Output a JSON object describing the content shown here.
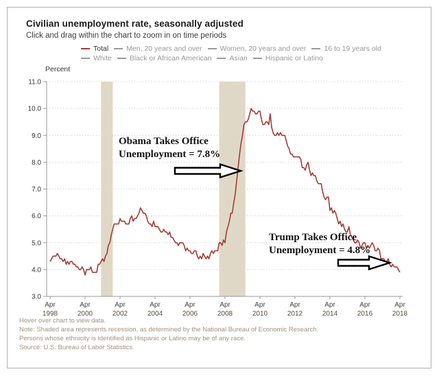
{
  "header": {
    "title": "Civilian unemployment rate, seasonally adjusted",
    "subtitle": "Click and drag within the chart to zoom in on time periods"
  },
  "legend": {
    "items": [
      {
        "label": "Total",
        "color": "#a33c32",
        "text_color": "#333333",
        "active": true
      },
      {
        "label": "Men, 20 years and over",
        "color": "#999999",
        "text_color": "#999999",
        "active": false
      },
      {
        "label": "Women, 20 years and over",
        "color": "#999999",
        "text_color": "#999999",
        "active": false
      },
      {
        "label": "16 to 19 years old",
        "color": "#999999",
        "text_color": "#999999",
        "active": false
      },
      {
        "label": "White",
        "color": "#999999",
        "text_color": "#999999",
        "active": false
      },
      {
        "label": "Black or African American",
        "color": "#999999",
        "text_color": "#999999",
        "active": false
      },
      {
        "label": "Asian",
        "color": "#999999",
        "text_color": "#999999",
        "active": false
      },
      {
        "label": "Hispanic or Latino",
        "color": "#999999",
        "text_color": "#999999",
        "active": false
      }
    ]
  },
  "chart_data": {
    "type": "line",
    "title": "Civilian unemployment rate, seasonally adjusted",
    "ylabel": "Percent",
    "xlabel": "",
    "ylim": [
      3.0,
      11.0
    ],
    "yticks": [
      "11.0",
      "10.0",
      "9.0",
      "8.0",
      "7.0",
      "6.0",
      "5.0",
      "4.0",
      "3.0"
    ],
    "grid": "dotted-horizontal",
    "legend_position": "top-center",
    "x_interval": "monthly",
    "x_start": "Apr 1998",
    "x_end": "Apr 2018",
    "xticks": [
      {
        "month": "Apr",
        "year": "1998"
      },
      {
        "month": "Apr",
        "year": "2000"
      },
      {
        "month": "Apr",
        "year": "2002"
      },
      {
        "month": "Apr",
        "year": "2004"
      },
      {
        "month": "Apr",
        "year": "2006"
      },
      {
        "month": "Apr",
        "year": "2008"
      },
      {
        "month": "Apr",
        "year": "2010"
      },
      {
        "month": "Apr",
        "year": "2012"
      },
      {
        "month": "Apr",
        "year": "2014"
      },
      {
        "month": "Apr",
        "year": "2016"
      },
      {
        "month": "Apr",
        "year": "2018"
      }
    ],
    "xtick_month_step": 24,
    "band_color": "#e0d8c7",
    "recessions": [
      {
        "label": "2001 recession",
        "start_month_index": 35,
        "end_month_index": 43
      },
      {
        "label": "2007-2009 recession",
        "start_month_index": 116,
        "end_month_index": 134
      }
    ],
    "series": [
      {
        "name": "Total",
        "color": "#a33c32",
        "values": [
          4.3,
          4.4,
          4.5,
          4.5,
          4.5,
          4.6,
          4.5,
          4.4,
          4.4,
          4.3,
          4.4,
          4.2,
          4.3,
          4.2,
          4.3,
          4.3,
          4.2,
          4.2,
          4.1,
          4.1,
          4.0,
          4.0,
          4.1,
          4.0,
          3.8,
          4.0,
          4.0,
          4.0,
          4.1,
          3.9,
          3.9,
          3.9,
          3.9,
          4.2,
          4.2,
          4.3,
          4.4,
          4.3,
          4.5,
          4.6,
          4.9,
          5.0,
          5.3,
          5.5,
          5.7,
          5.7,
          5.7,
          5.7,
          5.9,
          5.8,
          5.8,
          5.8,
          5.7,
          5.7,
          5.7,
          5.9,
          6.0,
          5.8,
          5.9,
          5.9,
          6.0,
          6.1,
          6.3,
          6.2,
          6.1,
          6.1,
          6.0,
          5.8,
          5.7,
          5.7,
          5.6,
          5.8,
          5.6,
          5.6,
          5.6,
          5.5,
          5.4,
          5.4,
          5.5,
          5.4,
          5.4,
          5.3,
          5.4,
          5.2,
          5.2,
          5.1,
          5.0,
          5.0,
          4.9,
          5.0,
          5.0,
          5.0,
          4.9,
          4.7,
          4.8,
          4.7,
          4.7,
          4.6,
          4.6,
          4.7,
          4.7,
          4.5,
          4.4,
          4.5,
          4.4,
          4.6,
          4.5,
          4.4,
          4.5,
          4.4,
          4.6,
          4.7,
          4.6,
          4.7,
          4.7,
          4.7,
          5.0,
          5.0,
          4.9,
          5.1,
          5.0,
          5.4,
          5.6,
          5.8,
          6.1,
          6.1,
          6.5,
          6.8,
          7.3,
          7.8,
          8.3,
          8.7,
          9.0,
          9.4,
          9.5,
          9.5,
          9.6,
          9.8,
          10.0,
          9.9,
          9.9,
          9.8,
          9.8,
          9.9,
          9.9,
          9.6,
          9.4,
          9.4,
          9.5,
          9.5,
          9.4,
          9.8,
          9.3,
          9.1,
          9.0,
          9.0,
          9.1,
          9.0,
          9.1,
          9.0,
          9.0,
          9.0,
          8.8,
          8.6,
          8.5,
          8.3,
          8.3,
          8.2,
          8.2,
          8.2,
          8.2,
          8.2,
          8.1,
          7.8,
          7.8,
          7.7,
          7.9,
          8.0,
          7.7,
          7.5,
          7.6,
          7.5,
          7.5,
          7.3,
          7.2,
          7.2,
          7.2,
          6.9,
          6.7,
          6.6,
          6.7,
          6.7,
          6.2,
          6.3,
          6.1,
          6.2,
          6.1,
          5.9,
          5.7,
          5.8,
          5.6,
          5.7,
          5.5,
          5.4,
          5.4,
          5.6,
          5.3,
          5.2,
          5.1,
          5.0,
          5.0,
          5.1,
          5.0,
          4.8,
          4.9,
          5.0,
          5.0,
          4.8,
          4.9,
          4.8,
          4.9,
          5.0,
          4.9,
          4.7,
          4.7,
          4.8,
          4.7,
          4.4,
          4.4,
          4.4,
          4.3,
          4.3,
          4.4,
          4.2,
          4.1,
          4.2,
          4.1,
          4.1,
          4.1,
          4.0,
          3.9
        ]
      }
    ]
  },
  "annotations": [
    {
      "line1": "Obama Takes Office",
      "line2": "Unemployment = 7.8%",
      "value": "7.8%"
    },
    {
      "line1": "Trump Takes Office",
      "line2": "Unemployment = 4.8%",
      "value": "4.8%"
    }
  ],
  "footer": {
    "lines": [
      "Hover over chart to view data.",
      "Note: Shaded area represents recession, as determined by the National Bureau of Economic Research.",
      "Persons whose ethnicity is identified as Hispanic or Latino may be of any race.",
      "Source: U.S. Bureau of Labor Statistics."
    ]
  }
}
